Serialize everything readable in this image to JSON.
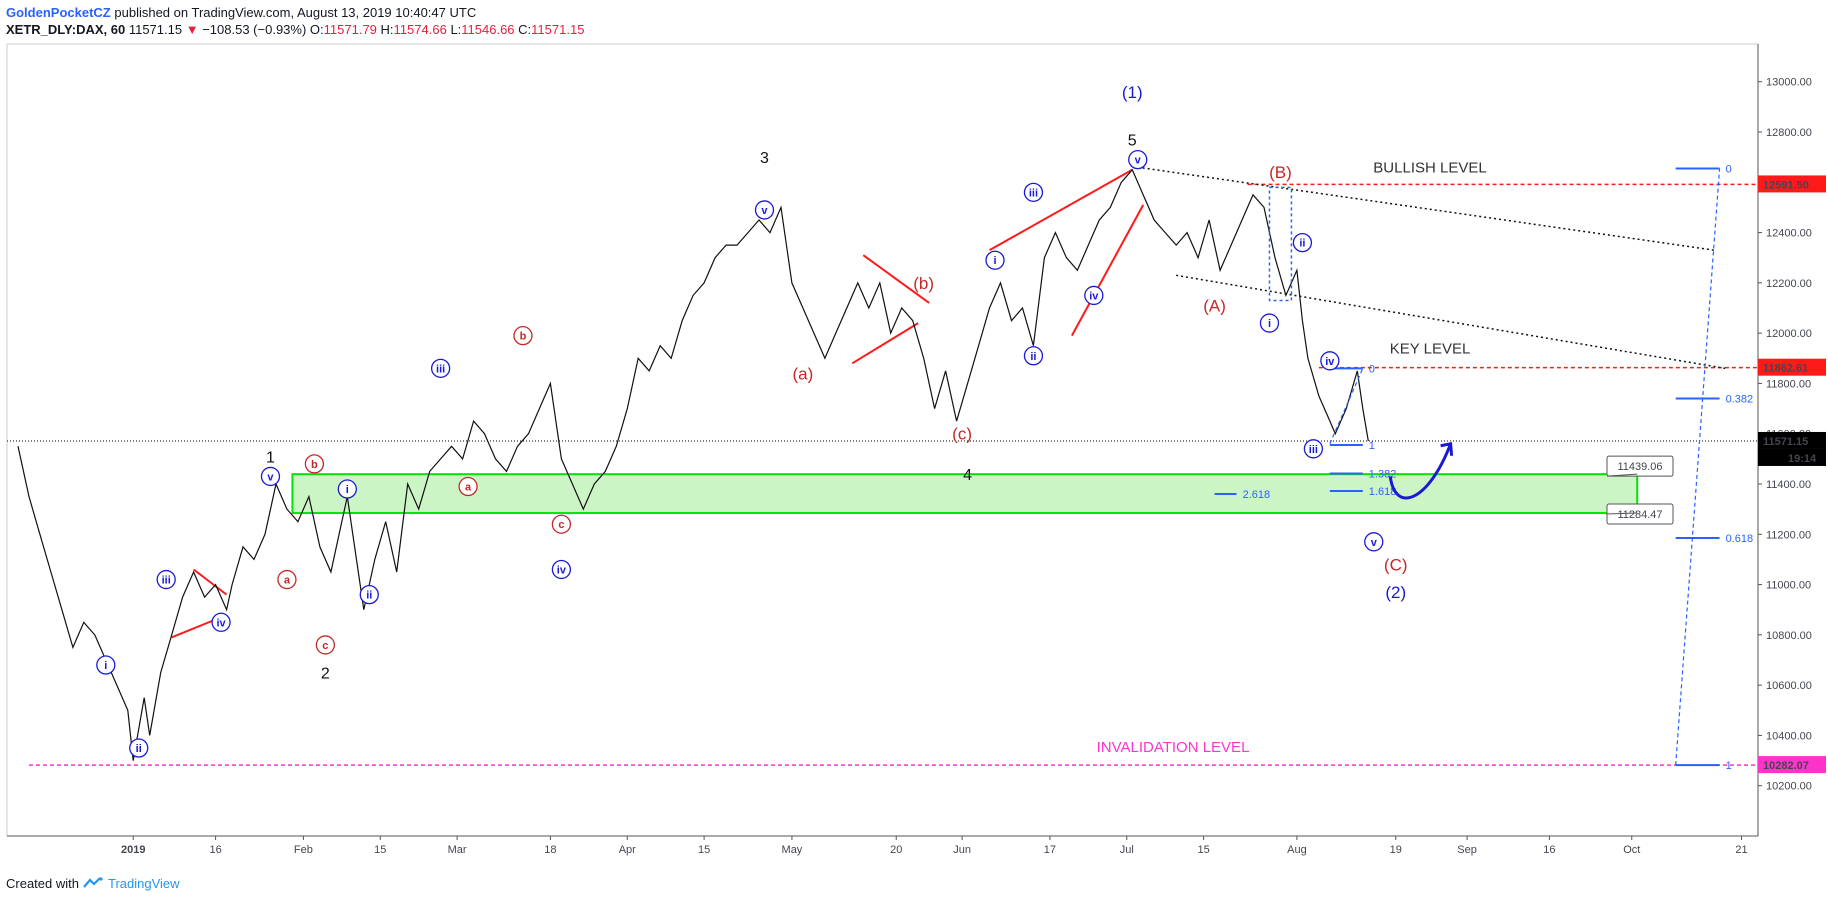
{
  "header": {
    "author": "GoldenPocketCZ",
    "published": "published on TradingView.com, August 13, 2019 10:40:47 UTC",
    "symbol": "XETR_DLY:DAX, 60",
    "last": "11571.15",
    "change": "−108.53 (−0.93%)",
    "open_label": "O:",
    "open": "11571.79",
    "high_label": "H:",
    "high": "11574.66",
    "low_label": "L:",
    "low": "11546.66",
    "close_label": "C:",
    "close": "11571.15"
  },
  "footer": {
    "created": "Created with",
    "brand": "TradingView"
  },
  "colors": {
    "blue_label": "#1a1ad6",
    "red_label": "#c62828",
    "red_line": "#ff1a1a",
    "magenta": "#ff33cc",
    "green_zone": "#00e600",
    "fib": "#2962ff"
  },
  "chart_data": {
    "type": "line",
    "title": "",
    "instrument": "XETR_DLY:DAX",
    "interval": "60",
    "ylim": [
      10000,
      13150
    ],
    "y_ticks": [
      10200,
      10400,
      10600,
      10800,
      11000,
      11200,
      11400,
      11600,
      11800,
      12000,
      12200,
      12400,
      12600,
      12800,
      13000
    ],
    "y_tick_labels": [
      "10200.00",
      "10400.00",
      "10600.00",
      "10800.00",
      "11000.00",
      "11200.00",
      "11400.00",
      "11600.00",
      "11800.00",
      "12000.00",
      "12200.00",
      "12400.00",
      "12600.00",
      "12800.00",
      "13000.00"
    ],
    "x_ticks": [
      {
        "label": "2019",
        "d": 0,
        "bold": true
      },
      {
        "label": "16",
        "d": 15
      },
      {
        "label": "Feb",
        "d": 31
      },
      {
        "label": "15",
        "d": 45
      },
      {
        "label": "Mar",
        "d": 59
      },
      {
        "label": "18",
        "d": 76
      },
      {
        "label": "Apr",
        "d": 90
      },
      {
        "label": "15",
        "d": 104
      },
      {
        "label": "May",
        "d": 120
      },
      {
        "label": "20",
        "d": 139
      },
      {
        "label": "Jun",
        "d": 151
      },
      {
        "label": "17",
        "d": 167
      },
      {
        "label": "Jul",
        "d": 181
      },
      {
        "label": "15",
        "d": 195
      },
      {
        "label": "Aug",
        "d": 212
      },
      {
        "label": "19",
        "d": 230
      },
      {
        "label": "Sep",
        "d": 243
      },
      {
        "label": "16",
        "d": 258
      },
      {
        "label": "Oct",
        "d": 273
      },
      {
        "label": "21",
        "d": 293
      }
    ],
    "x_range_days": [
      -23,
      296
    ],
    "price_series": [
      [
        -21,
        11550
      ],
      [
        -19,
        11350
      ],
      [
        -17,
        11200
      ],
      [
        -15,
        11050
      ],
      [
        -13,
        10900
      ],
      [
        -11,
        10750
      ],
      [
        -9,
        10850
      ],
      [
        -7,
        10800
      ],
      [
        -5,
        10700
      ],
      [
        -3,
        10600
      ],
      [
        -1,
        10500
      ],
      [
        0,
        10300
      ],
      [
        2,
        10550
      ],
      [
        3,
        10400
      ],
      [
        5,
        10650
      ],
      [
        7,
        10800
      ],
      [
        9,
        10950
      ],
      [
        11,
        11050
      ],
      [
        13,
        10950
      ],
      [
        15,
        11000
      ],
      [
        17,
        10900
      ],
      [
        18,
        11000
      ],
      [
        20,
        11150
      ],
      [
        22,
        11100
      ],
      [
        24,
        11200
      ],
      [
        26,
        11400
      ],
      [
        28,
        11300
      ],
      [
        30,
        11250
      ],
      [
        32,
        11350
      ],
      [
        34,
        11150
      ],
      [
        36,
        11050
      ],
      [
        38,
        11250
      ],
      [
        39,
        11350
      ],
      [
        41,
        11050
      ],
      [
        42,
        10900
      ],
      [
        44,
        11100
      ],
      [
        46,
        11250
      ],
      [
        48,
        11050
      ],
      [
        50,
        11400
      ],
      [
        52,
        11300
      ],
      [
        54,
        11450
      ],
      [
        56,
        11500
      ],
      [
        58,
        11550
      ],
      [
        60,
        11500
      ],
      [
        62,
        11650
      ],
      [
        64,
        11600
      ],
      [
        66,
        11500
      ],
      [
        68,
        11450
      ],
      [
        70,
        11550
      ],
      [
        72,
        11600
      ],
      [
        74,
        11700
      ],
      [
        76,
        11800
      ],
      [
        78,
        11500
      ],
      [
        80,
        11400
      ],
      [
        82,
        11300
      ],
      [
        84,
        11400
      ],
      [
        86,
        11450
      ],
      [
        88,
        11550
      ],
      [
        90,
        11700
      ],
      [
        92,
        11900
      ],
      [
        94,
        11850
      ],
      [
        96,
        11950
      ],
      [
        98,
        11900
      ],
      [
        100,
        12050
      ],
      [
        102,
        12150
      ],
      [
        104,
        12200
      ],
      [
        106,
        12300
      ],
      [
        108,
        12350
      ],
      [
        110,
        12350
      ],
      [
        112,
        12400
      ],
      [
        114,
        12450
      ],
      [
        116,
        12400
      ],
      [
        118,
        12500
      ],
      [
        120,
        12200
      ],
      [
        122,
        12100
      ],
      [
        124,
        12000
      ],
      [
        126,
        11900
      ],
      [
        128,
        12000
      ],
      [
        130,
        12100
      ],
      [
        132,
        12200
      ],
      [
        134,
        12100
      ],
      [
        136,
        12200
      ],
      [
        138,
        12000
      ],
      [
        140,
        12100
      ],
      [
        142,
        12050
      ],
      [
        144,
        11900
      ],
      [
        146,
        11700
      ],
      [
        148,
        11850
      ],
      [
        150,
        11650
      ],
      [
        152,
        11800
      ],
      [
        154,
        11950
      ],
      [
        156,
        12100
      ],
      [
        158,
        12200
      ],
      [
        160,
        12050
      ],
      [
        162,
        12100
      ],
      [
        164,
        11950
      ],
      [
        166,
        12300
      ],
      [
        168,
        12400
      ],
      [
        170,
        12300
      ],
      [
        172,
        12250
      ],
      [
        174,
        12350
      ],
      [
        176,
        12450
      ],
      [
        178,
        12500
      ],
      [
        180,
        12600
      ],
      [
        182,
        12650
      ],
      [
        184,
        12550
      ],
      [
        186,
        12450
      ],
      [
        188,
        12400
      ],
      [
        190,
        12350
      ],
      [
        192,
        12400
      ],
      [
        194,
        12300
      ],
      [
        196,
        12450
      ],
      [
        198,
        12250
      ],
      [
        200,
        12350
      ],
      [
        202,
        12450
      ],
      [
        204,
        12550
      ],
      [
        206,
        12500
      ],
      [
        208,
        12300
      ],
      [
        210,
        12150
      ],
      [
        212,
        12250
      ],
      [
        213,
        12050
      ],
      [
        214,
        11900
      ],
      [
        216,
        11750
      ],
      [
        218,
        11650
      ],
      [
        219,
        11600
      ],
      [
        221,
        11700
      ],
      [
        223,
        11850
      ],
      [
        224,
        11700
      ],
      [
        225,
        11571
      ]
    ],
    "waves": [
      {
        "label": "ii",
        "d": 1,
        "p": 10350,
        "color": "blue",
        "circle": true
      },
      {
        "label": "i",
        "d": -5,
        "p": 10680,
        "color": "blue",
        "circle": true
      },
      {
        "label": "iii",
        "d": 6,
        "p": 11020,
        "color": "blue",
        "circle": true
      },
      {
        "label": "iv",
        "d": 16,
        "p": 10850,
        "color": "blue",
        "circle": true
      },
      {
        "label": "v",
        "d": 25,
        "p": 11430,
        "color": "blue",
        "circle": true
      },
      {
        "label": "1",
        "d": 25,
        "p": 11510,
        "color": "black",
        "circle": false
      },
      {
        "label": "a",
        "d": 28,
        "p": 11020,
        "color": "red",
        "circle": true
      },
      {
        "label": "b",
        "d": 33,
        "p": 11480,
        "color": "red",
        "circle": true
      },
      {
        "label": "c",
        "d": 35,
        "p": 10760,
        "color": "red",
        "circle": true
      },
      {
        "label": "2",
        "d": 35,
        "p": 10650,
        "color": "black",
        "circle": false
      },
      {
        "label": "i",
        "d": 39,
        "p": 11380,
        "color": "blue",
        "circle": true
      },
      {
        "label": "ii",
        "d": 43,
        "p": 10960,
        "color": "blue",
        "circle": true
      },
      {
        "label": "iii",
        "d": 56,
        "p": 11860,
        "color": "blue",
        "circle": true
      },
      {
        "label": "a",
        "d": 61,
        "p": 11390,
        "color": "red",
        "circle": true
      },
      {
        "label": "b",
        "d": 71,
        "p": 11990,
        "color": "red",
        "circle": true
      },
      {
        "label": "c",
        "d": 78,
        "p": 11240,
        "color": "red",
        "circle": true
      },
      {
        "label": "iv",
        "d": 78,
        "p": 11060,
        "color": "blue",
        "circle": true
      },
      {
        "label": "3",
        "d": 115,
        "p": 12700,
        "color": "black",
        "circle": false
      },
      {
        "label": "v",
        "d": 115,
        "p": 12490,
        "color": "blue",
        "circle": true
      },
      {
        "label": "(a)",
        "d": 122,
        "p": 11840,
        "color": "red",
        "circle": false
      },
      {
        "label": "(b)",
        "d": 144,
        "p": 12200,
        "color": "red",
        "circle": false
      },
      {
        "label": "(c)",
        "d": 151,
        "p": 11600,
        "color": "red",
        "circle": false
      },
      {
        "label": "4",
        "d": 152,
        "p": 11440,
        "color": "black",
        "circle": false
      },
      {
        "label": "i",
        "d": 157,
        "p": 12290,
        "color": "blue",
        "circle": true
      },
      {
        "label": "ii",
        "d": 164,
        "p": 11910,
        "color": "blue",
        "circle": true
      },
      {
        "label": "iii",
        "d": 164,
        "p": 12560,
        "color": "blue",
        "circle": true
      },
      {
        "label": "iv",
        "d": 175,
        "p": 12150,
        "color": "blue",
        "circle": true
      },
      {
        "label": "(1)",
        "d": 182,
        "p": 12960,
        "color": "blue",
        "circle": false
      },
      {
        "label": "5",
        "d": 182,
        "p": 12770,
        "color": "black",
        "circle": false
      },
      {
        "label": "v",
        "d": 183,
        "p": 12690,
        "color": "blue",
        "circle": true
      },
      {
        "label": "(A)",
        "d": 197,
        "p": 12110,
        "color": "red",
        "circle": false
      },
      {
        "label": "(B)",
        "d": 209,
        "p": 12640,
        "color": "red",
        "circle": false
      },
      {
        "label": "ii",
        "d": 213,
        "p": 12360,
        "color": "blue",
        "circle": true
      },
      {
        "label": "i",
        "d": 207,
        "p": 12040,
        "color": "blue",
        "circle": true
      },
      {
        "label": "iv",
        "d": 218,
        "p": 11890,
        "color": "blue",
        "circle": true
      },
      {
        "label": "iii",
        "d": 215,
        "p": 11540,
        "color": "blue",
        "circle": true
      },
      {
        "label": "v",
        "d": 226,
        "p": 11170,
        "color": "blue",
        "circle": true
      },
      {
        "label": "(C)",
        "d": 230,
        "p": 11080,
        "color": "red",
        "circle": false
      },
      {
        "label": "(2)",
        "d": 230,
        "p": 10970,
        "color": "blue",
        "circle": false
      }
    ],
    "levels": [
      {
        "name": "BULLISH LEVEL",
        "value": 12591.5,
        "tag": "12591.50",
        "color": "#ff1a1a",
        "label": "BULLISH LEVEL"
      },
      {
        "name": "KEY LEVEL",
        "value": 11862.61,
        "tag": "11862.61",
        "color": "#ff1a1a",
        "label": "KEY LEVEL"
      },
      {
        "name": "INVALIDATION LEVEL",
        "value": 10282.07,
        "tag": "10282.07",
        "color": "#ff33cc",
        "label": "INVALIDATION LEVEL"
      },
      {
        "name": "last",
        "value": 11571.15,
        "tag": "11571.15",
        "sub": "19:14",
        "color": "#000000"
      }
    ],
    "zone": {
      "top": 11439.06,
      "bottom": 11284.47,
      "top_label": "11439.06",
      "bottom_label": "11284.47"
    },
    "fib_right": [
      {
        "label": "0",
        "value": 12655
      },
      {
        "label": "0.382",
        "value": 11740
      },
      {
        "label": "0.618",
        "value": 11185
      },
      {
        "label": "1",
        "value": 10282
      }
    ],
    "fib_small": [
      {
        "label": "0",
        "value": 11860
      },
      {
        "label": "1",
        "value": 11555
      },
      {
        "label": "1.382",
        "value": 11442
      },
      {
        "label": "1.618",
        "value": 11372
      },
      {
        "label": "2.618",
        "value": 11360
      }
    ]
  }
}
